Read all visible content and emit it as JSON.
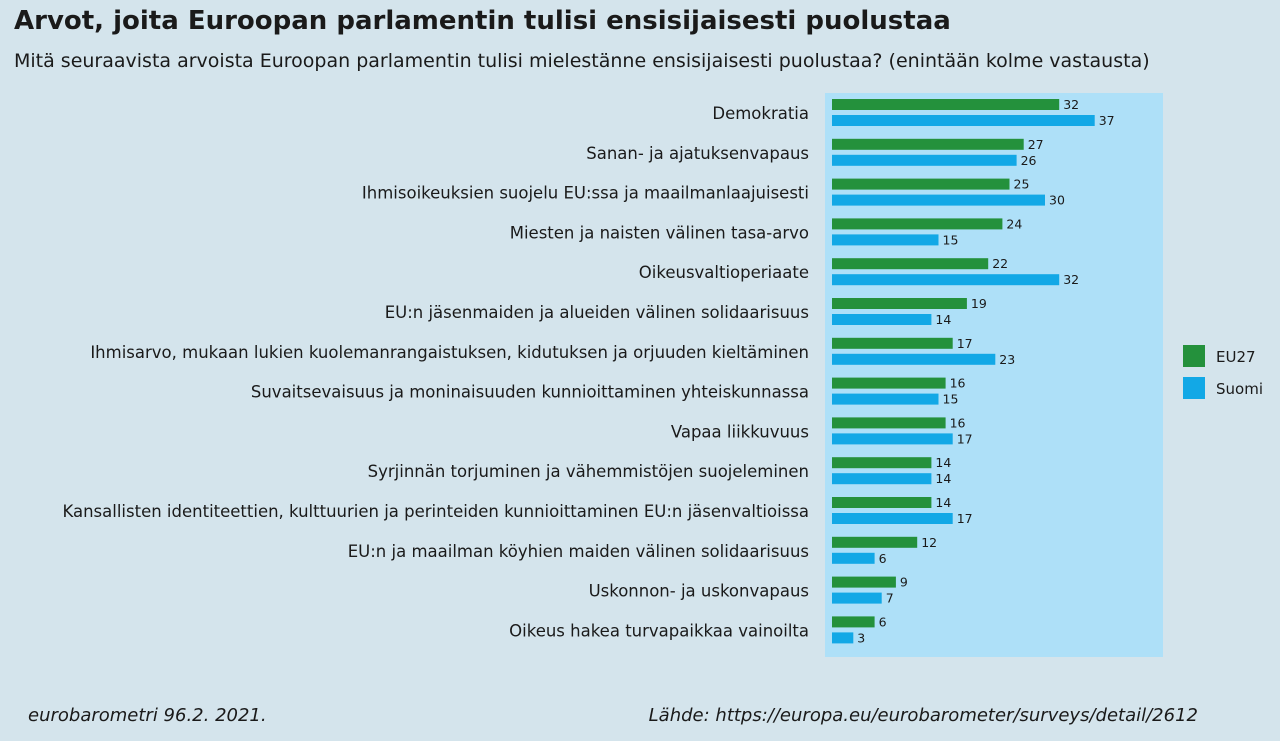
{
  "title": "Arvot, joita Euroopan parlamentin tulisi ensisijaisesti puolustaa",
  "subtitle": "Mitä seuraavista arvoista Euroopan parlamentin tulisi mielestänne ensisijaisesti puolustaa? (enintään kolme vastausta)",
  "footer": {
    "left": "eurobarometri 96.2. 2021.",
    "right": "Lähde: https://europa.eu/eurobarometer/surveys/detail/2612"
  },
  "colors": {
    "background": "#d4e4ec",
    "plot_background": "#aee0f8",
    "eu27": "#24913c",
    "suomi": "#12a8e6"
  },
  "chart_data": {
    "type": "bar",
    "orientation": "horizontal",
    "legend_position": "right",
    "categories": [
      "Demokratia",
      "Sanan- ja ajatuksenvapaus",
      "Ihmisoikeuksien suojelu EU:ssa ja maailmanlaajuisesti",
      "Miesten ja naisten välinen tasa-arvo",
      "Oikeusvaltioperiaate",
      "EU:n jäsenmaiden ja alueiden välinen solidaarisuus",
      "Ihmisarvo, mukaan lukien kuolemanrangaistuksen, kidutuksen ja orjuuden kieltäminen",
      "Suvaitsevaisuus ja moninaisuuden kunnioittaminen yhteiskunnassa",
      "Vapaa liikkuvuus",
      "Syrjinnän torjuminen ja vähemmistöjen suojeleminen",
      "Kansallisten identiteettien, kulttuurien ja perinteiden kunnioittaminen EU:n jäsenvaltioissa",
      "EU:n ja maailman köyhien maiden välinen solidaarisuus",
      "Uskonnon- ja uskonvapaus",
      "Oikeus hakea turvapaikkaa vainoilta"
    ],
    "series": [
      {
        "name": "EU27",
        "color": "#24913c",
        "values": [
          32,
          27,
          25,
          24,
          22,
          19,
          17,
          16,
          16,
          14,
          14,
          12,
          9,
          6
        ]
      },
      {
        "name": "Suomi",
        "color": "#12a8e6",
        "values": [
          37,
          26,
          30,
          15,
          32,
          14,
          23,
          15,
          17,
          14,
          17,
          6,
          7,
          3
        ]
      }
    ],
    "xlim": [
      0,
      40
    ],
    "grid": false
  }
}
